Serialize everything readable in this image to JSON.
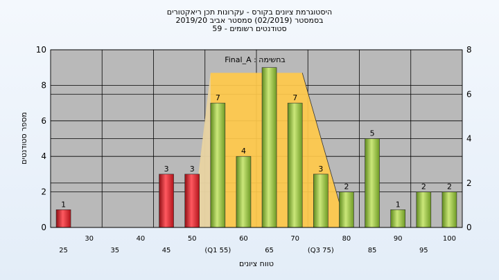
{
  "title_lines": [
    "היסטוגרמת ציונים בקורס - עקרונות תכן ריאקטורים",
    "בסמסטר  (02/2019)  סמסטר אביב 2019/20",
    "סטודנטים רשומים - 59"
  ],
  "colors": {
    "plot_bg": "#b9b9b9",
    "fail_bar": "#e3262e",
    "pass_bar": "#9bc53d",
    "quartile_area": "#ffc94a",
    "grid": "#000000"
  },
  "chart_data": {
    "type": "bar",
    "annotation": "Final_A : בחשימה",
    "xlabel": "טווח ציונים",
    "ylabel": "מספר סטודנטים",
    "ylim": [
      0,
      10
    ],
    "y2lim": [
      0,
      8
    ],
    "yticks": [
      0,
      2,
      4,
      6,
      8,
      10
    ],
    "y2ticks": [
      0,
      2,
      4,
      6,
      8
    ],
    "grid": true,
    "categories": [
      25,
      30,
      35,
      40,
      45,
      50,
      55,
      60,
      65,
      70,
      75,
      80,
      85,
      90,
      95,
      100
    ],
    "tick_labels_row1": [
      "30",
      "40",
      "50",
      "60",
      "70",
      "80",
      "90",
      "100"
    ],
    "tick_labels_row2": [
      "25",
      "35",
      "45",
      "(Q1 55)",
      "65",
      "(Q3 75)",
      "85",
      "95"
    ],
    "values": [
      1,
      0,
      0,
      0,
      3,
      3,
      7,
      4,
      9,
      7,
      3,
      2,
      5,
      1,
      2,
      2
    ],
    "bar_labels": [
      "1",
      "",
      "",
      "",
      "3",
      "3",
      "7",
      "4",
      "",
      "7",
      "3",
      "2",
      "5",
      "1",
      "2",
      "2"
    ],
    "fail_threshold": 55,
    "quartile_band": {
      "q1": 55,
      "q3": 75,
      "plateau": 8.7
    }
  }
}
